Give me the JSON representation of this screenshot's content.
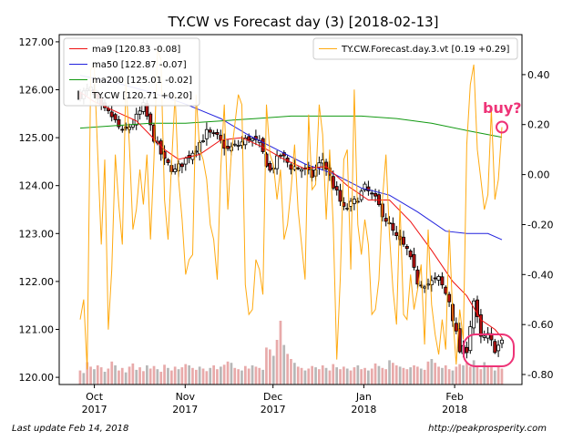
{
  "chart_data": {
    "type": "candlestick",
    "title": "TY.CW vs Forecast day (3)  [2018-02-13]",
    "x_ticks": [
      {
        "date": "2017-10-01",
        "month": "Oct",
        "year": "2017"
      },
      {
        "date": "2017-11-01",
        "month": "Nov",
        "year": "2017"
      },
      {
        "date": "2017-12-01",
        "month": "Dec",
        "year": "2017"
      },
      {
        "date": "2018-01-01",
        "month": "Jan",
        "year": "2018"
      },
      {
        "date": "2018-02-01",
        "month": "Feb",
        "year": "2018"
      }
    ],
    "xlim": [
      "2017-09-19",
      "2018-02-24"
    ],
    "y_left_ticks": [
      "120.00",
      "121.00",
      "122.00",
      "123.00",
      "124.00",
      "125.00",
      "126.00",
      "127.00"
    ],
    "ylim_left": [
      119.85,
      127.15
    ],
    "y_right_ticks": [
      "-0.80",
      "-0.60",
      "-0.40",
      "-0.20",
      "0.00",
      "0.20",
      "0.40"
    ],
    "ylim_right": [
      -0.84,
      0.56
    ],
    "grid": false,
    "legend_left": {
      "placement": "top-left",
      "entries": [
        {
          "label": "ma9 [120.83 -0.08]",
          "color": "#ee1111",
          "type": "line"
        },
        {
          "label": "ma50 [122.87 -0.07]",
          "color": "#2222dd",
          "type": "line"
        },
        {
          "label": "ma200 [125.01 -0.02]",
          "color": "#119911",
          "type": "line"
        },
        {
          "label": "TY.CW [120.71 +0.20]",
          "color": "#555555",
          "type": "bar"
        }
      ]
    },
    "legend_right": {
      "placement": "top-right",
      "entries": [
        {
          "label": "TY.CW.Forecast.day.3.vt [0.19 +0.29]",
          "color": "#ffaa11",
          "type": "line"
        }
      ]
    },
    "series": {
      "ma9": [
        [
          0,
          125.95
        ],
        [
          4,
          125.75
        ],
        [
          10,
          125.55
        ],
        [
          16,
          125.35
        ],
        [
          20,
          125.05
        ],
        [
          24,
          124.75
        ],
        [
          28,
          124.55
        ],
        [
          34,
          124.65
        ],
        [
          40,
          124.95
        ],
        [
          46,
          125.0
        ],
        [
          52,
          124.8
        ],
        [
          58,
          124.55
        ],
        [
          64,
          124.35
        ],
        [
          70,
          124.4
        ],
        [
          76,
          124.0
        ],
        [
          82,
          123.7
        ],
        [
          88,
          123.7
        ],
        [
          94,
          123.25
        ],
        [
          100,
          122.65
        ],
        [
          106,
          122.0
        ],
        [
          110,
          121.7
        ],
        [
          114,
          121.2
        ],
        [
          118,
          121.0
        ],
        [
          120,
          120.83
        ]
      ],
      "ma50": [
        [
          0,
          126.3
        ],
        [
          10,
          126.15
        ],
        [
          20,
          125.95
        ],
        [
          30,
          125.7
        ],
        [
          40,
          125.4
        ],
        [
          48,
          125.05
        ],
        [
          56,
          124.75
        ],
        [
          64,
          124.45
        ],
        [
          72,
          124.25
        ],
        [
          80,
          123.95
        ],
        [
          88,
          123.8
        ],
        [
          96,
          123.45
        ],
        [
          104,
          123.05
        ],
        [
          110,
          123.0
        ],
        [
          116,
          123.0
        ],
        [
          120,
          122.87
        ]
      ],
      "ma200": [
        [
          0,
          125.2
        ],
        [
          10,
          125.25
        ],
        [
          20,
          125.3
        ],
        [
          30,
          125.3
        ],
        [
          40,
          125.35
        ],
        [
          50,
          125.4
        ],
        [
          60,
          125.45
        ],
        [
          70,
          125.45
        ],
        [
          80,
          125.45
        ],
        [
          90,
          125.4
        ],
        [
          100,
          125.3
        ],
        [
          110,
          125.15
        ],
        [
          120,
          125.01
        ]
      ],
      "forecast": [
        [
          0,
          -0.58
        ],
        [
          1,
          -0.5
        ],
        [
          2,
          -0.78
        ],
        [
          3,
          0.42
        ],
        [
          4,
          0.44
        ],
        [
          5,
          0.08
        ],
        [
          6,
          -0.28
        ],
        [
          7,
          0.06
        ],
        [
          8,
          -0.62
        ],
        [
          9,
          -0.38
        ],
        [
          10,
          0.08
        ],
        [
          11,
          -0.12
        ],
        [
          12,
          -0.28
        ],
        [
          13,
          0.38
        ],
        [
          14,
          0.12
        ],
        [
          15,
          -0.22
        ],
        [
          16,
          -0.14
        ],
        [
          17,
          0.02
        ],
        [
          18,
          -0.12
        ],
        [
          19,
          0.08
        ],
        [
          20,
          -0.26
        ],
        [
          21,
          0.06
        ],
        [
          22,
          0.5
        ],
        [
          23,
          0.46
        ],
        [
          24,
          -0.1
        ],
        [
          25,
          -0.26
        ],
        [
          26,
          0.04
        ],
        [
          27,
          0.32
        ],
        [
          28,
          -0.02
        ],
        [
          29,
          -0.18
        ],
        [
          30,
          -0.4
        ],
        [
          31,
          -0.34
        ],
        [
          32,
          -0.32
        ],
        [
          33,
          0.32
        ],
        [
          34,
          0.1
        ],
        [
          35,
          0.06
        ],
        [
          36,
          -0.02
        ],
        [
          37,
          -0.2
        ],
        [
          38,
          -0.26
        ],
        [
          39,
          -0.42
        ],
        [
          40,
          0.02
        ],
        [
          41,
          0.28
        ],
        [
          42,
          -0.14
        ],
        [
          43,
          0.08
        ],
        [
          44,
          0.2
        ],
        [
          45,
          0.32
        ],
        [
          46,
          0.28
        ],
        [
          47,
          -0.44
        ],
        [
          48,
          -0.56
        ],
        [
          49,
          -0.54
        ],
        [
          50,
          -0.34
        ],
        [
          51,
          -0.38
        ],
        [
          52,
          -0.48
        ],
        [
          53,
          0.28
        ],
        [
          54,
          0.08
        ],
        [
          55,
          0.04
        ],
        [
          56,
          -0.1
        ],
        [
          57,
          0.02
        ],
        [
          58,
          -0.26
        ],
        [
          59,
          -0.2
        ],
        [
          60,
          -0.06
        ],
        [
          61,
          0.12
        ],
        [
          62,
          -0.14
        ],
        [
          63,
          -0.28
        ],
        [
          64,
          -0.42
        ],
        [
          65,
          0.24
        ],
        [
          66,
          -0.06
        ],
        [
          67,
          -0.04
        ],
        [
          68,
          0.28
        ],
        [
          69,
          0.16
        ],
        [
          70,
          -0.18
        ],
        [
          71,
          0.1
        ],
        [
          72,
          -0.2
        ],
        [
          73,
          -0.74
        ],
        [
          74,
          -0.42
        ],
        [
          75,
          0.06
        ],
        [
          76,
          0.1
        ],
        [
          77,
          -0.38
        ],
        [
          78,
          0.34
        ],
        [
          79,
          -0.2
        ],
        [
          80,
          -0.32
        ],
        [
          81,
          -0.18
        ],
        [
          82,
          -0.28
        ],
        [
          83,
          -0.56
        ],
        [
          84,
          -0.54
        ],
        [
          85,
          -0.42
        ],
        [
          86,
          -0.1
        ],
        [
          87,
          0.08
        ],
        [
          88,
          -0.24
        ],
        [
          89,
          -0.46
        ],
        [
          90,
          -0.6
        ],
        [
          91,
          -0.12
        ],
        [
          92,
          -0.56
        ],
        [
          93,
          -0.58
        ],
        [
          94,
          -0.4
        ],
        [
          95,
          -0.54
        ],
        [
          96,
          -0.46
        ],
        [
          97,
          -0.36
        ],
        [
          98,
          -0.68
        ],
        [
          99,
          -0.22
        ],
        [
          100,
          -0.52
        ],
        [
          101,
          -0.64
        ],
        [
          102,
          -0.72
        ],
        [
          103,
          -0.58
        ],
        [
          104,
          -0.7
        ],
        [
          105,
          -0.22
        ],
        [
          106,
          -0.56
        ],
        [
          107,
          -0.76
        ],
        [
          108,
          -0.54
        ],
        [
          109,
          -0.66
        ],
        [
          110,
          0.12
        ],
        [
          111,
          0.36
        ],
        [
          112,
          0.44
        ],
        [
          113,
          0.1
        ],
        [
          114,
          -0.02
        ],
        [
          115,
          -0.14
        ],
        [
          116,
          -0.08
        ],
        [
          117,
          0.26
        ],
        [
          118,
          -0.1
        ],
        [
          119,
          -0.02
        ],
        [
          120,
          0.19
        ]
      ]
    },
    "candles": {
      "anchors": [
        [
          0,
          125.9
        ],
        [
          3,
          126.0
        ],
        [
          6,
          125.6
        ],
        [
          9,
          125.45
        ],
        [
          12,
          125.1
        ],
        [
          15,
          125.3
        ],
        [
          18,
          125.65
        ],
        [
          21,
          125.0
        ],
        [
          24,
          124.5
        ],
        [
          27,
          124.3
        ],
        [
          30,
          124.55
        ],
        [
          33,
          124.8
        ],
        [
          36,
          125.1
        ],
        [
          39,
          125.0
        ],
        [
          42,
          124.75
        ],
        [
          45,
          124.85
        ],
        [
          48,
          125.0
        ],
        [
          51,
          124.85
        ],
        [
          54,
          124.3
        ],
        [
          57,
          124.65
        ],
        [
          60,
          124.4
        ],
        [
          63,
          124.35
        ],
        [
          66,
          124.2
        ],
        [
          69,
          124.55
        ],
        [
          72,
          124.0
        ],
        [
          75,
          123.5
        ],
        [
          78,
          123.65
        ],
        [
          81,
          123.95
        ],
        [
          84,
          123.7
        ],
        [
          87,
          123.3
        ],
        [
          90,
          122.9
        ],
        [
          93,
          122.65
        ],
        [
          96,
          122.0
        ],
        [
          99,
          121.95
        ],
        [
          102,
          122.05
        ],
        [
          105,
          121.6
        ],
        [
          108,
          120.55
        ],
        [
          110,
          120.6
        ],
        [
          112,
          121.6
        ],
        [
          114,
          120.8
        ],
        [
          116,
          120.85
        ],
        [
          118,
          120.6
        ],
        [
          120,
          120.71
        ]
      ],
      "volumes": [
        0.22,
        0.18,
        0.35,
        0.28,
        0.24,
        0.3,
        0.27,
        0.2,
        0.25,
        0.36,
        0.3,
        0.22,
        0.26,
        0.19,
        0.28,
        0.33,
        0.23,
        0.27,
        0.21,
        0.3,
        0.25,
        0.29,
        0.24,
        0.2,
        0.31,
        0.26,
        0.22,
        0.28,
        0.24,
        0.27,
        0.32,
        0.3,
        0.26,
        0.23,
        0.28,
        0.25,
        0.21,
        0.26,
        0.3,
        0.24,
        0.28,
        0.31,
        0.36,
        0.34,
        0.26,
        0.24,
        0.22,
        0.29,
        0.25,
        0.3,
        0.28,
        0.26,
        0.23,
        0.58,
        0.55,
        0.45,
        0.7,
        1.0,
        0.62,
        0.48,
        0.4,
        0.34,
        0.28,
        0.26,
        0.22,
        0.25,
        0.29,
        0.27,
        0.24,
        0.3,
        0.26,
        0.22,
        0.32,
        0.27,
        0.24,
        0.28,
        0.25,
        0.22,
        0.27,
        0.3,
        0.24,
        0.26,
        0.22,
        0.25,
        0.33,
        0.29,
        0.26,
        0.24,
        0.38,
        0.34,
        0.3,
        0.28,
        0.26,
        0.24,
        0.27,
        0.3,
        0.28,
        0.25,
        0.23,
        0.36,
        0.4,
        0.34,
        0.28,
        0.26,
        0.3,
        0.24,
        0.22,
        0.28,
        0.32,
        0.3,
        0.34,
        0.28,
        0.38,
        0.3,
        0.24,
        0.35,
        0.3,
        0.27,
        0.22,
        0.28,
        0.25
      ]
    },
    "annotations": [
      {
        "text": "buy?",
        "color": "#ee3377"
      }
    ]
  },
  "footer": {
    "left": "Last update Feb 14, 2018",
    "right": "http://peakprosperity.com"
  }
}
